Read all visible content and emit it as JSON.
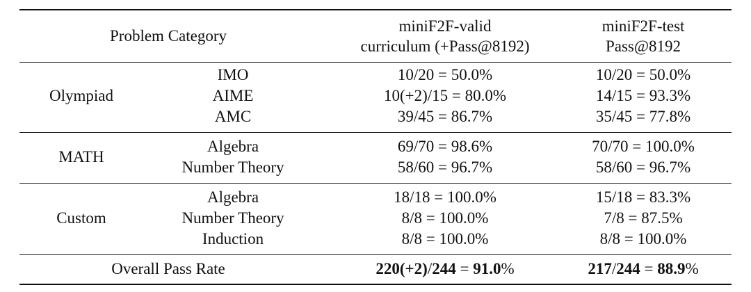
{
  "header": {
    "category": "Problem Category",
    "valid": [
      "miniF2F-valid",
      "curriculum (+Pass@8192)"
    ],
    "test": [
      "miniF2F-test",
      "Pass@8192"
    ]
  },
  "groups": [
    {
      "name": "Olympiad",
      "rows": [
        {
          "subcategory": "IMO",
          "valid": "10/20 = 50.0%",
          "test": "10/20 = 50.0%"
        },
        {
          "subcategory": "AIME",
          "valid": "10(+2)/15 = 80.0%",
          "test": "14/15 = 93.3%"
        },
        {
          "subcategory": "AMC",
          "valid": "39/45 = 86.7%",
          "test": "35/45 = 77.8%"
        }
      ]
    },
    {
      "name": "MATH",
      "rows": [
        {
          "subcategory": "Algebra",
          "valid": "69/70 = 98.6%",
          "test": "70/70 = 100.0%"
        },
        {
          "subcategory": "Number Theory",
          "valid": "58/60 = 96.7%",
          "test": "58/60 = 96.7%"
        }
      ]
    },
    {
      "name": "Custom",
      "rows": [
        {
          "subcategory": "Algebra",
          "valid": "18/18 = 100.0%",
          "test": "15/18 = 83.3%"
        },
        {
          "subcategory": "Number Theory",
          "valid": "8/8 = 100.0%",
          "test": "7/8 = 87.5%"
        },
        {
          "subcategory": "Induction",
          "valid": "8/8 = 100.0%",
          "test": "8/8 = 100.0%"
        }
      ]
    }
  ],
  "overall": {
    "label": "Overall Pass Rate",
    "valid": "220(+2)/244 = 91.0%",
    "test": "217/244 = 88.9%"
  }
}
